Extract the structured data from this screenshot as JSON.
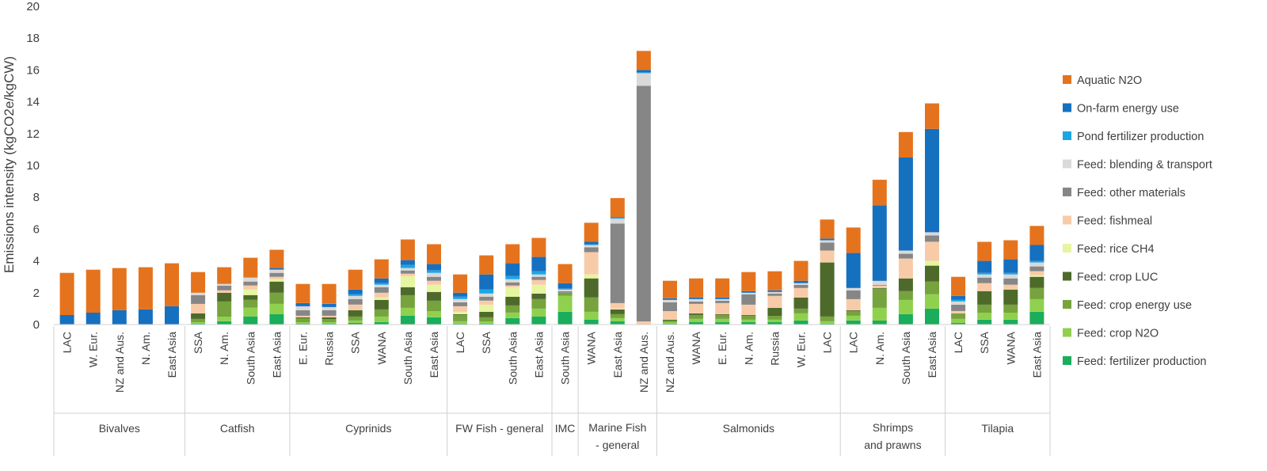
{
  "chart_data": {
    "type": "bar",
    "stacked": true,
    "ylabel": "Emissions intensity (kgCO2e/kgCW)",
    "xlabel": "",
    "ylim": [
      0,
      20
    ],
    "yticks": [
      0,
      2,
      4,
      6,
      8,
      10,
      12,
      14,
      16,
      18,
      20
    ],
    "grid": false,
    "legend_position": "right",
    "groups": [
      {
        "name": "Bivalves",
        "categories": [
          "LAC",
          "W. Eur.",
          "NZ and Aus.",
          "N. Am.",
          "East Asia"
        ]
      },
      {
        "name": "Catfish",
        "categories": [
          "SSA",
          "N. Am.",
          "South Asia",
          "East Asia"
        ]
      },
      {
        "name": "Cyprinids",
        "categories": [
          "E. Eur.",
          "Russia",
          "SSA",
          "WANA",
          "South Asia",
          "East Asia"
        ]
      },
      {
        "name": "FW Fish - general",
        "categories": [
          "LAC",
          "SSA",
          "South Asia",
          "East Asia"
        ]
      },
      {
        "name": "IMC",
        "categories": [
          "South Asia"
        ]
      },
      {
        "name": "Marine Fish - general",
        "categories": [
          "WANA",
          "East Asia",
          "NZ and Aus."
        ]
      },
      {
        "name": "Salmonids",
        "categories": [
          "NZ and Aus.",
          "WANA",
          "E. Eur.",
          "N. Am.",
          "Russia",
          "W. Eur.",
          "LAC"
        ]
      },
      {
        "name": "Shrimps and prawns",
        "categories": [
          "LAC",
          "N. Am.",
          "South Asia",
          "East Asia"
        ]
      },
      {
        "name": "Tilapia",
        "categories": [
          "LAC",
          "SSA",
          "WANA",
          "East Asia"
        ]
      }
    ],
    "series": [
      {
        "name": "Feed: fertilizer production",
        "color": "#1aad5c",
        "values": [
          0,
          0,
          0,
          0,
          0,
          0.05,
          0.2,
          0.5,
          0.65,
          0.05,
          0.05,
          0.1,
          0.15,
          0.55,
          0.45,
          0.05,
          0.05,
          0.4,
          0.5,
          0.8,
          0.3,
          0.2,
          0,
          0.05,
          0.15,
          0.15,
          0.15,
          0.15,
          0.25,
          0.05,
          0.25,
          0.25,
          0.65,
          1.0,
          0.1,
          0.3,
          0.3,
          0.8
        ]
      },
      {
        "name": "Feed: crop N2O",
        "color": "#8fd14f",
        "values": [
          0,
          0,
          0,
          0,
          0,
          0.1,
          0.3,
          0.55,
          0.65,
          0.1,
          0.1,
          0.15,
          0.35,
          0.5,
          0.4,
          0.15,
          0.15,
          0.35,
          0.5,
          1.0,
          0.5,
          0.2,
          0,
          0.1,
          0.2,
          0.2,
          0.15,
          0.15,
          0.45,
          0.15,
          0.3,
          0.8,
          0.9,
          0.9,
          0.25,
          0.45,
          0.45,
          0.8
        ]
      },
      {
        "name": "Feed: crop energy use",
        "color": "#76a33d",
        "values": [
          0,
          0,
          0,
          0,
          0,
          0.2,
          0.95,
          0.5,
          0.7,
          0.25,
          0.2,
          0.25,
          0.45,
          0.8,
          0.65,
          0.4,
          0.25,
          0.45,
          0.6,
          0.2,
          0.9,
          0.25,
          0,
          0.1,
          0.25,
          0.25,
          0.25,
          0.25,
          0.3,
          0.3,
          0.3,
          1.2,
          0.55,
          0.8,
          0.35,
          0.5,
          0.5,
          0.7
        ]
      },
      {
        "name": "Feed: crop LUC",
        "color": "#4d6a2a",
        "values": [
          0,
          0,
          0,
          0,
          0,
          0.35,
          0.55,
          0.3,
          0.7,
          0.05,
          0.1,
          0.4,
          0.6,
          0.5,
          0.55,
          0.05,
          0.35,
          0.55,
          0.35,
          0,
          1.2,
          0.3,
          0,
          0.05,
          0.1,
          0.05,
          0.05,
          0.5,
          0.7,
          3.4,
          0.05,
          0.05,
          0.8,
          1.0,
          0.0,
          0.85,
          0.95,
          0.7
        ]
      },
      {
        "name": "Feed: rice CH4",
        "color": "#e6f5a0",
        "values": [
          0,
          0,
          0,
          0,
          0,
          0,
          0,
          0.35,
          0.15,
          0,
          0,
          0,
          0.15,
          0.7,
          0.45,
          0.15,
          0.45,
          0.6,
          0.55,
          0.0,
          0.25,
          0.05,
          0,
          0,
          0,
          0,
          0,
          0,
          0,
          0,
          0,
          0,
          0,
          0.3,
          0,
          0,
          0,
          0.1
        ]
      },
      {
        "name": "Feed: fishmeal",
        "color": "#f8cba8",
        "values": [
          0,
          0,
          0,
          0,
          0,
          0.6,
          0.15,
          0.25,
          0.15,
          0.1,
          0.1,
          0.35,
          0.3,
          0.15,
          0.25,
          0.35,
          0.25,
          0.1,
          0.3,
          0,
          1.4,
          0.35,
          0.2,
          0.55,
          0.6,
          0.7,
          0.65,
          0.75,
          0.6,
          0.75,
          0.7,
          0.15,
          1.25,
          1.2,
          0.15,
          0.5,
          0.3,
          0.25
        ]
      },
      {
        "name": "Feed: other materials",
        "color": "#868686",
        "values": [
          0,
          0,
          0,
          0,
          0,
          0.55,
          0.3,
          0.25,
          0.25,
          0.35,
          0.35,
          0.35,
          0.35,
          0.2,
          0.25,
          0.25,
          0.25,
          0.2,
          0.2,
          0.1,
          0.3,
          5.0,
          14.8,
          0.55,
          0.15,
          0.15,
          0.65,
          0.15,
          0.2,
          0.5,
          0.55,
          0.05,
          0.3,
          0.4,
          0.4,
          0.35,
          0.4,
          0.3
        ]
      },
      {
        "name": "Feed: blending & transport",
        "color": "#d9d9d9",
        "values": [
          0,
          0,
          0,
          0,
          0,
          0.15,
          0.1,
          0.25,
          0.2,
          0.25,
          0.2,
          0.2,
          0.15,
          0.15,
          0.25,
          0.2,
          0.2,
          0.2,
          0.15,
          0.1,
          0.15,
          0.3,
          0.8,
          0.15,
          0.15,
          0.1,
          0.1,
          0.1,
          0.1,
          0.15,
          0.15,
          0.25,
          0.2,
          0.2,
          0.2,
          0.2,
          0.25,
          0.25
        ]
      },
      {
        "name": "Pond fertilizer production",
        "color": "#1ca7e2",
        "values": [
          0,
          0,
          0,
          0,
          0,
          0,
          0,
          0,
          0,
          0,
          0,
          0.1,
          0.1,
          0.2,
          0.15,
          0.15,
          0.25,
          0.2,
          0.2,
          0.05,
          0.05,
          0.05,
          0.05,
          0,
          0,
          0,
          0,
          0,
          0,
          0,
          0,
          0,
          0,
          0,
          0.1,
          0.1,
          0.1,
          0.1
        ]
      },
      {
        "name": "On-farm energy use",
        "color": "#1670c0",
        "values": [
          0.6,
          0.75,
          0.9,
          0.95,
          1.15,
          0,
          0,
          0,
          0.1,
          0.2,
          0.2,
          0.3,
          0.3,
          0.3,
          0.4,
          0.25,
          0.95,
          0.8,
          0.9,
          0.35,
          0.15,
          0.05,
          0.15,
          0.1,
          0.1,
          0.1,
          0.1,
          0.1,
          0.15,
          0.1,
          2.2,
          4.75,
          5.85,
          6.5,
          0.25,
          0.75,
          0.85,
          1.0
        ]
      },
      {
        "name": "Aquatic N2O",
        "color": "#e5731d",
        "values": [
          2.65,
          2.7,
          2.65,
          2.65,
          2.7,
          1.3,
          1.05,
          1.25,
          1.15,
          1.2,
          1.25,
          1.25,
          1.2,
          1.3,
          1.25,
          1.15,
          1.2,
          1.2,
          1.2,
          1.2,
          1.2,
          1.2,
          1.2,
          1.1,
          1.2,
          1.2,
          1.2,
          1.2,
          1.25,
          1.2,
          1.6,
          1.6,
          1.6,
          1.6,
          1.2,
          1.2,
          1.2,
          1.2
        ]
      }
    ]
  }
}
